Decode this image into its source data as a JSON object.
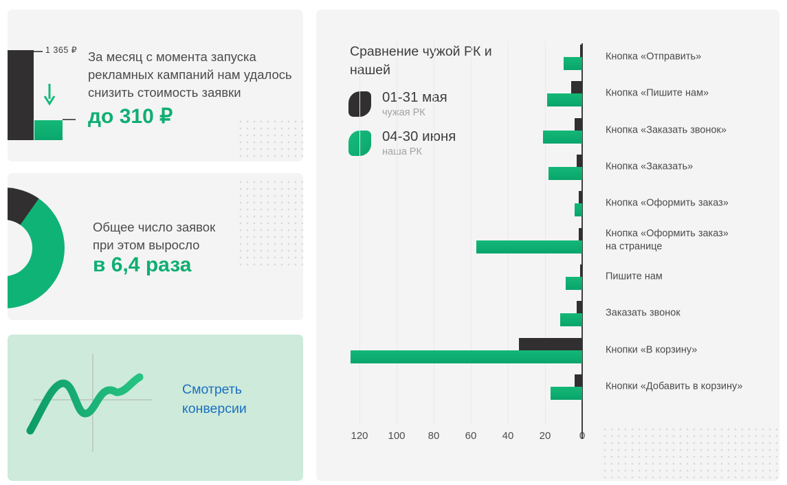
{
  "colors": {
    "card_bg": "#f4f4f5",
    "mint_bg": "#cdeada",
    "dark": "#312f30",
    "green": "#0fb274",
    "green_text": "#0fae72",
    "link_blue": "#1b6fc0",
    "text": "#4b4b4b",
    "muted": "#a2a2a2",
    "gridline": "#e9e9e9",
    "axis": "#3e3c3d",
    "dots": "#d9d9d9"
  },
  "cards": {
    "cost": {
      "bar_value_label": "1 365 ₽",
      "arrow_icon": "down-arrow-icon",
      "text": "За месяц с момента запуска\nрекламных кампаний нам удалось\nснизить стоимость заявки",
      "highlight": "до 310 ₽"
    },
    "requests": {
      "text": "Общее число заявок\nпри этом выросло",
      "highlight": "в 6,4 раза"
    },
    "conversions": {
      "chart_icon": "line-chart-icon",
      "link_label": "Смотреть конверсии"
    }
  },
  "chart_data": {
    "type": "bar",
    "orientation": "horizontal, bars grow leftward from zero axis on the right",
    "title": "Сравнение чужой РК и нашей",
    "legend_position": "top-left",
    "grid": true,
    "xlim": [
      0,
      130
    ],
    "xticks": [
      120,
      100,
      80,
      60,
      40,
      20,
      0
    ],
    "categories": [
      "Кнопка «Отправить»",
      "Кнопка «Пишите нам»",
      "Кнопка «Заказать звонок»",
      "Кнопка «Заказать»",
      "Кнопка «Оформить заказ»",
      "Кнопка «Оформить заказ»\nна странице",
      "Пишите нам",
      "Заказать звонок",
      "Кнопки «В корзину»",
      "Кнопки «Добавить в корзину»"
    ],
    "series": [
      {
        "name": "01-31 мая",
        "subtitle": "чужая РК",
        "color": "#312f30",
        "values": [
          1,
          6,
          4,
          3,
          2,
          2,
          1,
          3,
          34,
          4
        ]
      },
      {
        "name": "04-30 июня",
        "subtitle": "наша РК",
        "color": "#0fb274",
        "values": [
          10,
          19,
          21,
          18,
          4,
          57,
          9,
          12,
          125,
          17
        ]
      }
    ]
  }
}
